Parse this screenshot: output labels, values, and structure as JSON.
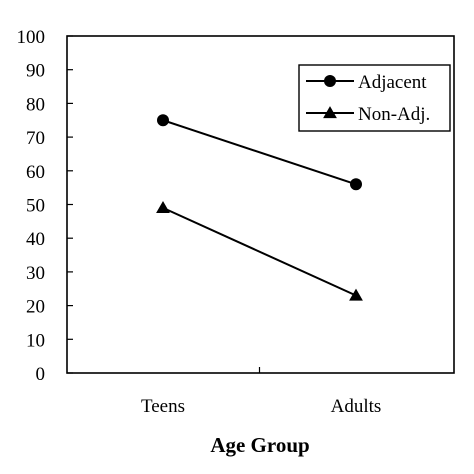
{
  "chart_data": {
    "type": "line",
    "categories": [
      "Teens",
      "Adults"
    ],
    "series": [
      {
        "name": "Adjacent",
        "values": [
          75,
          56
        ],
        "marker": "circle"
      },
      {
        "name": "Non-Adj.",
        "values": [
          49,
          23
        ],
        "marker": "triangle"
      }
    ],
    "xlabel": "Age Group",
    "ylabel": "",
    "ylim": [
      0,
      100
    ],
    "yticks": [
      "0",
      "10",
      "20",
      "30",
      "40",
      "50",
      "60",
      "70",
      "80",
      "90",
      "100"
    ],
    "grid": false,
    "legend_position": "top-right",
    "colors": {
      "line": "#000000",
      "background": "#ffffff"
    }
  }
}
